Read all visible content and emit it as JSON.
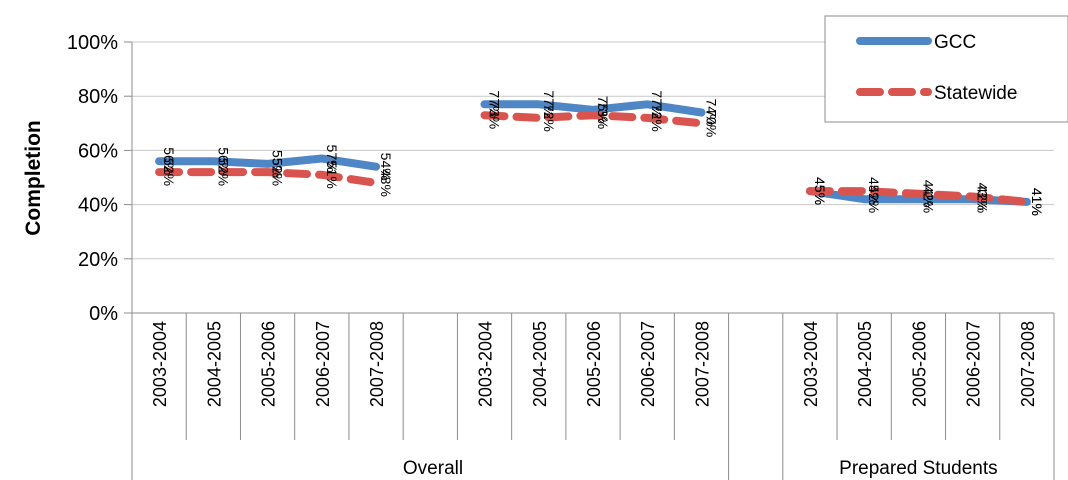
{
  "chart_data": {
    "type": "line",
    "title": "",
    "xlabel": "",
    "ylabel": "Completion",
    "ylim": [
      0,
      1
    ],
    "yticks": [
      "0%",
      "20%",
      "40%",
      "60%",
      "80%",
      "100%"
    ],
    "grid": true,
    "legend_position": "top-right",
    "groups": [
      {
        "name": "Overall",
        "categories": [
          "2003-2004",
          "2004-2005",
          "2005-2006",
          "2006-2007",
          "2007-2008"
        ]
      },
      {
        "name": "",
        "categories": [
          "2003-2004",
          "2004-2005",
          "2005-2006",
          "2006-2007",
          "2007-2008"
        ]
      },
      {
        "name": "Prepared Students",
        "categories": [
          "2003-2004",
          "2004-2005",
          "2005-2006",
          "2006-2007",
          "2007-2008"
        ]
      }
    ],
    "series": [
      {
        "name": "GCC",
        "color": "#4f86c6",
        "style": "solid",
        "values": [
          [
            0.56,
            0.56,
            0.55,
            0.57,
            0.54
          ],
          [
            0.77,
            0.77,
            0.75,
            0.77,
            0.74
          ],
          [
            0.45,
            0.42,
            0.42,
            0.42,
            0.41
          ]
        ],
        "labels": [
          [
            "56%",
            "56%",
            "55%",
            "57%",
            "54%"
          ],
          [
            "77%",
            "77%",
            "75%",
            "77%",
            "74%"
          ],
          [
            "45%",
            "42%",
            "42%",
            "42%",
            "41%"
          ]
        ]
      },
      {
        "name": "Statewide",
        "color": "#d9534f",
        "style": "dashed",
        "values": [
          [
            0.52,
            0.52,
            0.52,
            0.51,
            0.48
          ],
          [
            0.73,
            0.72,
            0.73,
            0.72,
            0.7
          ],
          [
            0.45,
            0.45,
            0.44,
            0.43,
            0.41
          ]
        ],
        "labels": [
          [
            "52%",
            "52%",
            "52%",
            "51%",
            "48%"
          ],
          [
            "73%",
            "72%",
            "73%",
            "72%",
            "70%"
          ],
          [
            "45%",
            "45%",
            "44%",
            "43%",
            "41%"
          ]
        ]
      }
    ]
  }
}
